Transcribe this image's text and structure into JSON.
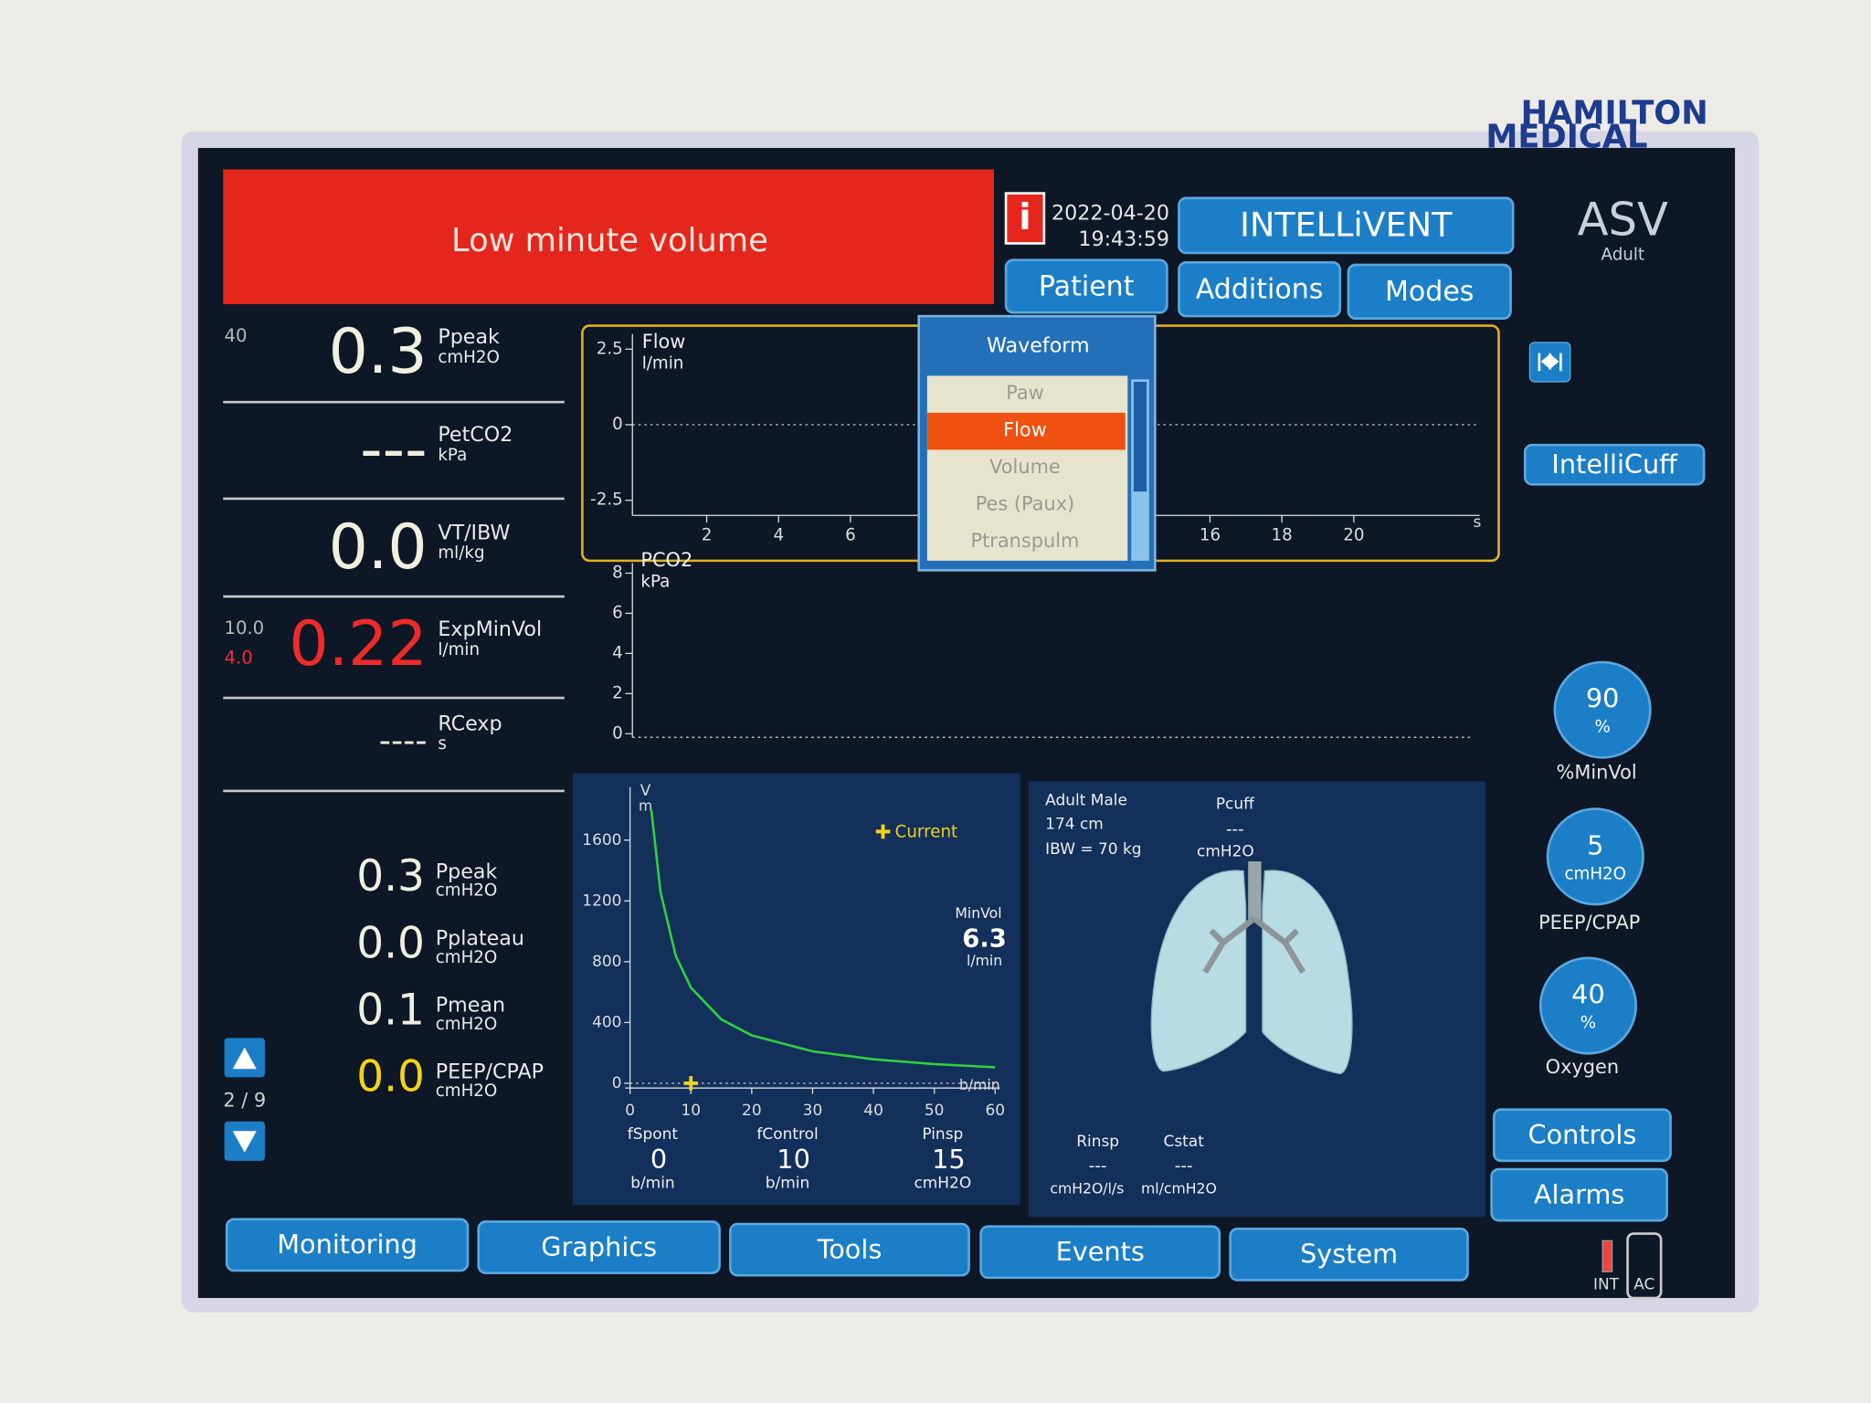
{
  "brand": {
    "line1": "HAMILTON",
    "line2": "MEDICAL"
  },
  "alarm": {
    "message": "Low minute volume",
    "info_icon": "i"
  },
  "clock": {
    "date": "2022-04-20",
    "time": "19:43:59"
  },
  "top_buttons": [
    "INTELLiVENT",
    "Patient",
    "Additions",
    "Modes"
  ],
  "mode": {
    "name": "ASV",
    "group": "Adult"
  },
  "main_monitoring": [
    {
      "limit_high": "40",
      "value": "0.3",
      "name": "Ppeak",
      "unit": "cmH2O"
    },
    {
      "value": "---",
      "name": "PetCO2",
      "unit": "kPa"
    },
    {
      "value": "0.0",
      "name": "VT/IBW",
      "unit": "ml/kg"
    },
    {
      "limit_high": "10.0",
      "limit_low": "4.0",
      "value": "0.22",
      "name": "ExpMinVol",
      "unit": "l/min"
    },
    {
      "value": "----",
      "name": "RCexp",
      "unit": "s"
    }
  ],
  "secondary_monitoring": [
    {
      "value": "0.3",
      "name": "Ppeak",
      "unit": "cmH2O"
    },
    {
      "value": "0.0",
      "name": "Pplateau",
      "unit": "cmH2O"
    },
    {
      "value": "0.1",
      "name": "Pmean",
      "unit": "cmH2O"
    },
    {
      "value": "0.0",
      "name": "PEEP/CPAP",
      "unit": "cmH2O"
    }
  ],
  "page_indicator": "2 / 9",
  "flow_graph": {
    "label": "Flow",
    "unit": "l/min",
    "x_unit": "s",
    "color": "#e0b020",
    "ylim": [
      -3,
      3
    ],
    "yticks": [
      2.5,
      0,
      -2.5
    ],
    "xlim": [
      0,
      23.5
    ],
    "xticks": [
      2,
      4,
      6,
      16,
      18,
      20
    ]
  },
  "waveform_menu": {
    "title": "Waveform",
    "options": [
      "Paw",
      "Flow",
      "Volume",
      "Pes (Paux)",
      "Ptranspulm"
    ],
    "selected": 1
  },
  "pco2_graph": {
    "label": "PCO2",
    "unit": "kPa",
    "ylim": [
      0,
      8.5
    ],
    "yticks": [
      0,
      2,
      4,
      6,
      8
    ]
  },
  "asv_graph": {
    "y_label": "V",
    "y_unit": "m",
    "x_unit": "b/min",
    "xlim": [
      0,
      60
    ],
    "ylim": [
      0,
      1900
    ],
    "xticks": [
      0,
      10,
      20,
      30,
      40,
      50,
      60
    ],
    "yticks": [
      0,
      400,
      800,
      1200,
      1600
    ],
    "curve": {
      "color": "#30d040",
      "x": [
        3.5,
        5,
        7.5,
        10,
        15,
        20,
        30,
        40,
        50,
        60
      ],
      "y": [
        1800,
        1260,
        840,
        630,
        420,
        315,
        210,
        158,
        126,
        105
      ]
    },
    "current": {
      "label": "Current",
      "x": 10,
      "y": 0,
      "color": "#f0d020"
    },
    "minvol": {
      "label": "MinVol",
      "value": "6.3",
      "unit": "l/min"
    },
    "parameters": [
      {
        "name": "fSpont",
        "value": "0",
        "unit": "b/min"
      },
      {
        "name": "fControl",
        "value": "10",
        "unit": "b/min"
      },
      {
        "name": "Pinsp",
        "value": "15",
        "unit": "cmH2O"
      }
    ]
  },
  "patient_panel": {
    "description": "Adult Male",
    "height": "174 cm",
    "ibw": "IBW = 70 kg",
    "pcuff": {
      "name": "Pcuff",
      "value": "---",
      "unit": "cmH2O"
    },
    "rinsp": {
      "name": "Rinsp",
      "value": "---",
      "unit": "cmH2O/l/s"
    },
    "cstat": {
      "name": "Cstat",
      "value": "---",
      "unit": "ml/cmH2O"
    }
  },
  "intellicuff": "IntelliCuff",
  "controls": [
    {
      "value": "90",
      "unit": "%",
      "name": "%MinVol"
    },
    {
      "value": "5",
      "unit": "cmH2O",
      "name": "PEEP/CPAP"
    },
    {
      "value": "40",
      "unit": "%",
      "name": "Oxygen"
    }
  ],
  "side_buttons": [
    "Controls",
    "Alarms"
  ],
  "tabs": [
    "Monitoring",
    "Graphics",
    "Tools",
    "Events",
    "System"
  ],
  "power": {
    "battery": "INT",
    "mains": "AC"
  }
}
